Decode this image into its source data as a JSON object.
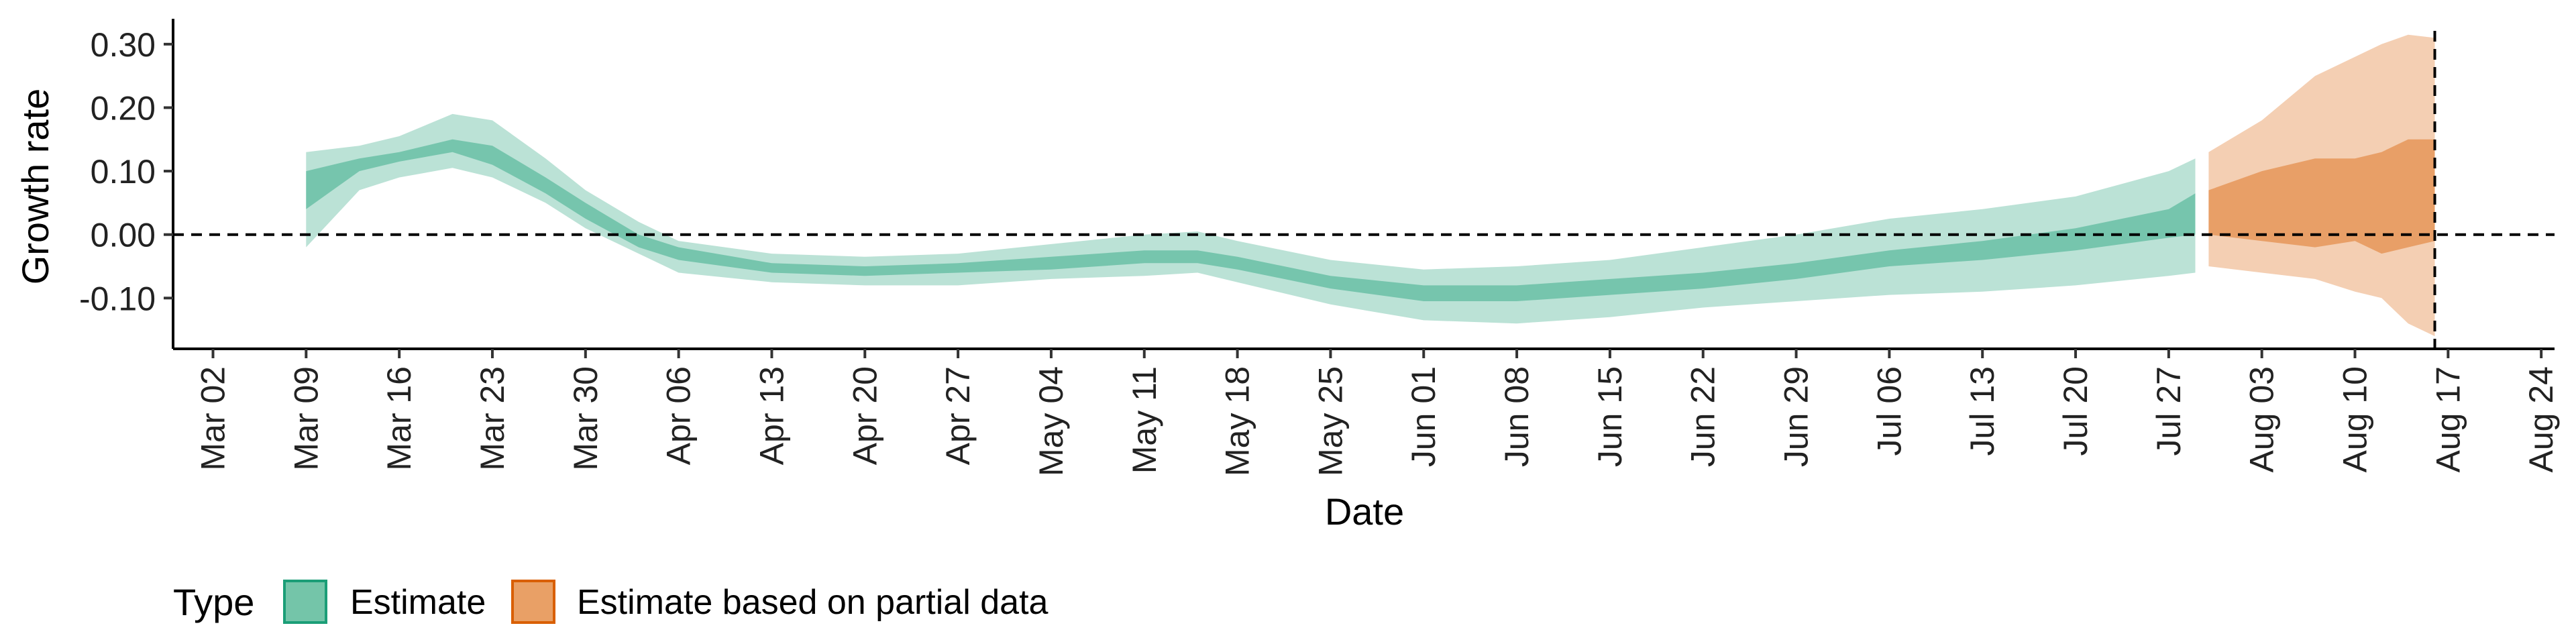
{
  "chart_data": {
    "type": "area",
    "xlabel": "Date",
    "ylabel": "Growth rate",
    "ylim": [
      -0.18,
      0.34
    ],
    "xlim": [
      "2020-02-28",
      "2020-08-25"
    ],
    "y_ticks": [
      -0.1,
      0.0,
      0.1,
      0.2,
      0.3
    ],
    "y_tick_labels": [
      "-0.10",
      "0.00",
      "0.10",
      "0.20",
      "0.30"
    ],
    "x_ticks": [
      "2020-03-02",
      "2020-03-09",
      "2020-03-16",
      "2020-03-23",
      "2020-03-30",
      "2020-04-06",
      "2020-04-13",
      "2020-04-20",
      "2020-04-27",
      "2020-05-04",
      "2020-05-11",
      "2020-05-18",
      "2020-05-25",
      "2020-06-01",
      "2020-06-08",
      "2020-06-15",
      "2020-06-22",
      "2020-06-29",
      "2020-07-06",
      "2020-07-13",
      "2020-07-20",
      "2020-07-27",
      "2020-08-03",
      "2020-08-10",
      "2020-08-17",
      "2020-08-24"
    ],
    "x_tick_labels": [
      "Mar 02",
      "Mar 09",
      "Mar 16",
      "Mar 23",
      "Mar 30",
      "Apr 06",
      "Apr 13",
      "Apr 20",
      "Apr 27",
      "May 04",
      "May 11",
      "May 18",
      "May 25",
      "Jun 01",
      "Jun 08",
      "Jun 15",
      "Jun 22",
      "Jun 29",
      "Jul 06",
      "Jul 13",
      "Jul 20",
      "Jul 27",
      "Aug 03",
      "Aug 10",
      "Aug 17",
      "Aug 24"
    ],
    "hline_y": 0,
    "vline_x": "2020-08-16",
    "grid": false,
    "legend_position": "bottom-left",
    "legend_title": "Type",
    "series": [
      {
        "name": "Estimate",
        "color": "#1b9e77",
        "points": [
          {
            "x": "2020-03-09",
            "lo90": -0.02,
            "lo50": 0.04,
            "hi50": 0.1,
            "hi90": 0.13
          },
          {
            "x": "2020-03-13",
            "lo90": 0.07,
            "lo50": 0.1,
            "hi50": 0.12,
            "hi90": 0.14
          },
          {
            "x": "2020-03-16",
            "lo90": 0.09,
            "lo50": 0.115,
            "hi50": 0.13,
            "hi90": 0.155
          },
          {
            "x": "2020-03-20",
            "lo90": 0.105,
            "lo50": 0.13,
            "hi50": 0.15,
            "hi90": 0.19
          },
          {
            "x": "2020-03-23",
            "lo90": 0.09,
            "lo50": 0.11,
            "hi50": 0.14,
            "hi90": 0.18
          },
          {
            "x": "2020-03-27",
            "lo90": 0.05,
            "lo50": 0.065,
            "hi50": 0.09,
            "hi90": 0.12
          },
          {
            "x": "2020-03-30",
            "lo90": 0.01,
            "lo50": 0.025,
            "hi50": 0.05,
            "hi90": 0.07
          },
          {
            "x": "2020-04-03",
            "lo90": -0.03,
            "lo50": -0.02,
            "hi50": 0.0,
            "hi90": 0.02
          },
          {
            "x": "2020-04-06",
            "lo90": -0.06,
            "lo50": -0.04,
            "hi50": -0.02,
            "hi90": -0.01
          },
          {
            "x": "2020-04-13",
            "lo90": -0.075,
            "lo50": -0.06,
            "hi50": -0.045,
            "hi90": -0.03
          },
          {
            "x": "2020-04-20",
            "lo90": -0.08,
            "lo50": -0.065,
            "hi50": -0.05,
            "hi90": -0.035
          },
          {
            "x": "2020-04-27",
            "lo90": -0.08,
            "lo50": -0.06,
            "hi50": -0.045,
            "hi90": -0.03
          },
          {
            "x": "2020-05-04",
            "lo90": -0.07,
            "lo50": -0.055,
            "hi50": -0.035,
            "hi90": -0.015
          },
          {
            "x": "2020-05-11",
            "lo90": -0.065,
            "lo50": -0.045,
            "hi50": -0.025,
            "hi90": 0.0
          },
          {
            "x": "2020-05-15",
            "lo90": -0.06,
            "lo50": -0.045,
            "hi50": -0.025,
            "hi90": 0.005
          },
          {
            "x": "2020-05-18",
            "lo90": -0.075,
            "lo50": -0.055,
            "hi50": -0.035,
            "hi90": -0.01
          },
          {
            "x": "2020-05-25",
            "lo90": -0.11,
            "lo50": -0.085,
            "hi50": -0.065,
            "hi90": -0.04
          },
          {
            "x": "2020-06-01",
            "lo90": -0.135,
            "lo50": -0.105,
            "hi50": -0.08,
            "hi90": -0.055
          },
          {
            "x": "2020-06-08",
            "lo90": -0.14,
            "lo50": -0.105,
            "hi50": -0.08,
            "hi90": -0.05
          },
          {
            "x": "2020-06-15",
            "lo90": -0.13,
            "lo50": -0.095,
            "hi50": -0.07,
            "hi90": -0.04
          },
          {
            "x": "2020-06-22",
            "lo90": -0.115,
            "lo50": -0.085,
            "hi50": -0.06,
            "hi90": -0.02
          },
          {
            "x": "2020-06-29",
            "lo90": -0.105,
            "lo50": -0.07,
            "hi50": -0.045,
            "hi90": 0.0
          },
          {
            "x": "2020-07-06",
            "lo90": -0.095,
            "lo50": -0.05,
            "hi50": -0.025,
            "hi90": 0.025
          },
          {
            "x": "2020-07-13",
            "lo90": -0.09,
            "lo50": -0.04,
            "hi50": -0.01,
            "hi90": 0.04
          },
          {
            "x": "2020-07-20",
            "lo90": -0.08,
            "lo50": -0.025,
            "hi50": 0.01,
            "hi90": 0.06
          },
          {
            "x": "2020-07-27",
            "lo90": -0.065,
            "lo50": -0.005,
            "hi50": 0.04,
            "hi90": 0.1
          },
          {
            "x": "2020-07-29",
            "lo90": -0.06,
            "lo50": 0.0,
            "hi50": 0.065,
            "hi90": 0.12
          }
        ]
      },
      {
        "name": "Estimate based on partial data",
        "color": "#d95f02",
        "points": [
          {
            "x": "2020-07-30",
            "lo90": -0.05,
            "lo50": 0.0,
            "hi50": 0.07,
            "hi90": 0.13
          },
          {
            "x": "2020-08-03",
            "lo90": -0.06,
            "lo50": -0.01,
            "hi50": 0.1,
            "hi90": 0.18
          },
          {
            "x": "2020-08-07",
            "lo90": -0.07,
            "lo50": -0.02,
            "hi50": 0.12,
            "hi90": 0.25
          },
          {
            "x": "2020-08-10",
            "lo90": -0.09,
            "lo50": -0.01,
            "hi50": 0.12,
            "hi90": 0.28
          },
          {
            "x": "2020-08-12",
            "lo90": -0.1,
            "lo50": -0.03,
            "hi50": 0.13,
            "hi90": 0.3
          },
          {
            "x": "2020-08-14",
            "lo90": -0.14,
            "lo50": -0.02,
            "hi50": 0.15,
            "hi90": 0.315
          },
          {
            "x": "2020-08-16",
            "lo90": -0.16,
            "lo50": -0.01,
            "hi50": 0.15,
            "hi90": 0.31
          }
        ]
      }
    ]
  },
  "legend": {
    "title": "Type",
    "items": [
      {
        "label": "Estimate",
        "color": "#1b9e77"
      },
      {
        "label": "Estimate based on partial data",
        "color": "#d95f02"
      }
    ]
  }
}
